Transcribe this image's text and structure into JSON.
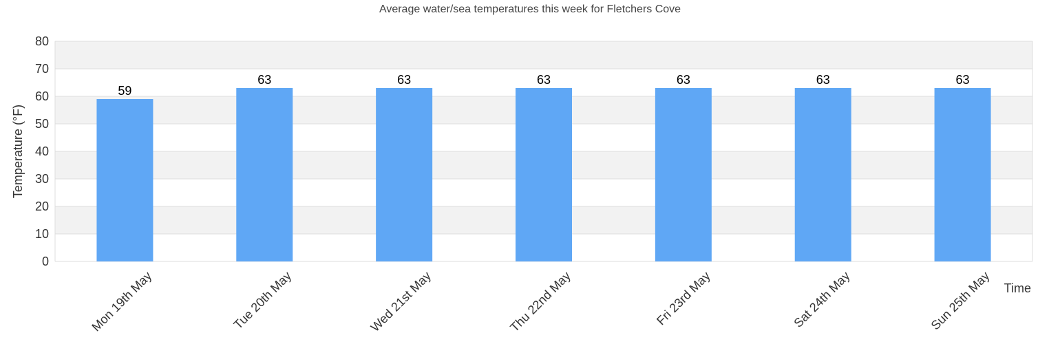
{
  "chart_data": {
    "type": "bar",
    "title": "Average water/sea temperatures this week for Fletchers Cove",
    "xlabel": "Time",
    "ylabel": "Temperature (°F)",
    "categories": [
      "Mon 19th May",
      "Tue 20th May",
      "Wed 21st May",
      "Thu 22nd May",
      "Fri 23rd May",
      "Sat 24th May",
      "Sun 25th May"
    ],
    "values": [
      59,
      63,
      63,
      63,
      63,
      63,
      63
    ],
    "ylim": [
      0,
      80
    ],
    "yticks": [
      "0",
      "10",
      "20",
      "30",
      "40",
      "50",
      "60",
      "70",
      "80"
    ],
    "grid": true,
    "legend": "none",
    "colors": {
      "bar": "#5fa7f5",
      "band_alt": "#f2f2f2",
      "gridline": "#dddddd"
    }
  }
}
